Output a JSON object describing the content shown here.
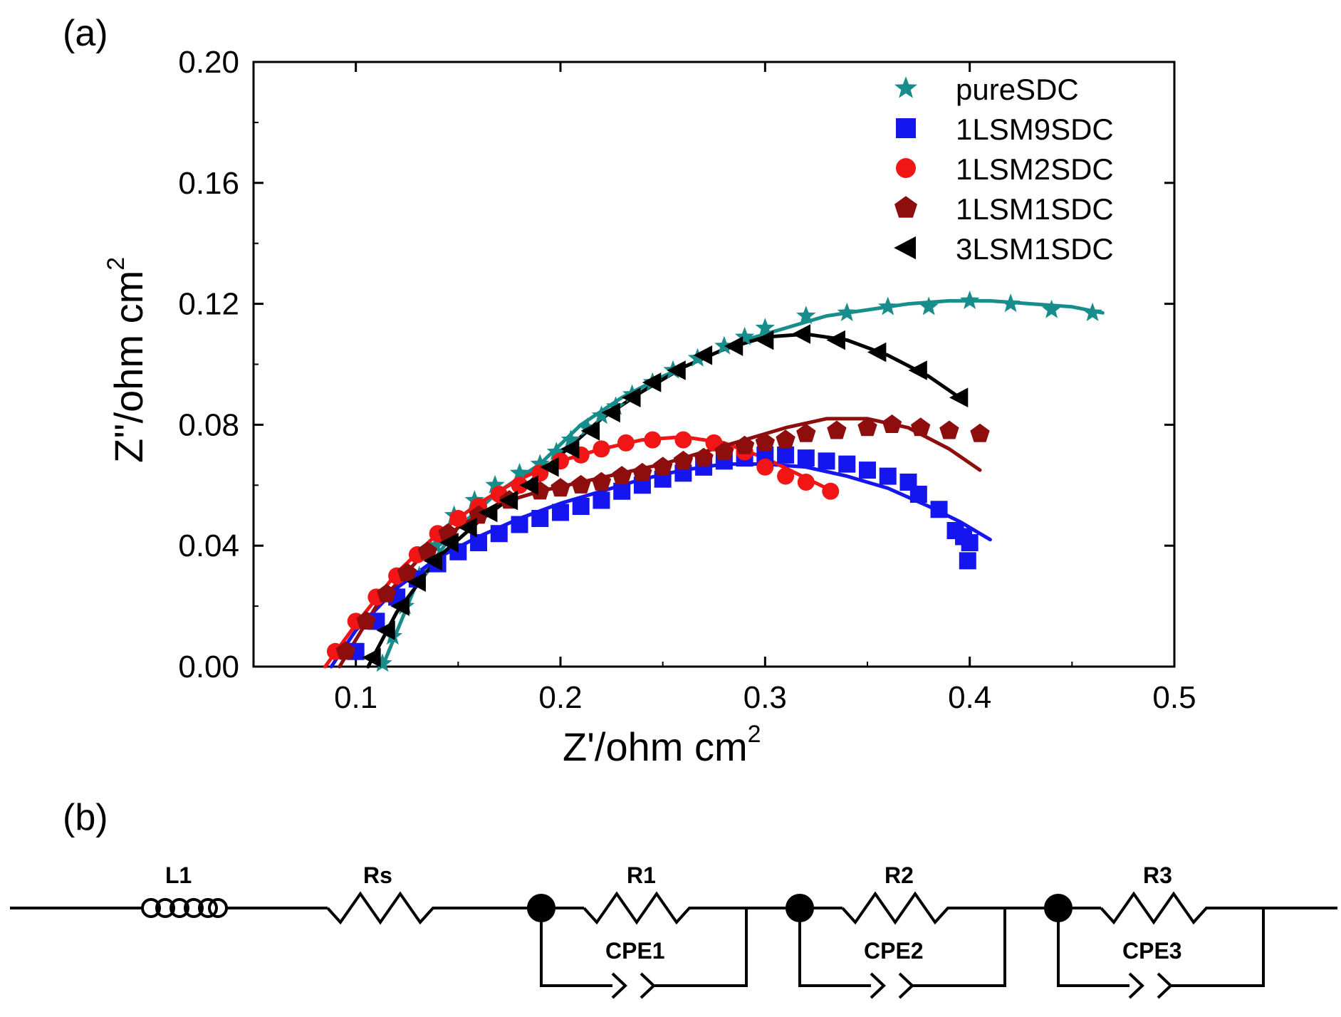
{
  "panels": {
    "a": "(a)",
    "b": "(b)"
  },
  "chart_data": {
    "type": "scatter",
    "title": "",
    "xlabel": "Z'/ohm cm",
    "xlabel_sup": "2",
    "ylabel": "Z''/ohm cm",
    "ylabel_sup": "2",
    "xlim": [
      0.05,
      0.5
    ],
    "ylim": [
      0.0,
      0.2
    ],
    "xticks": [
      0.1,
      0.2,
      0.3,
      0.4,
      0.5
    ],
    "xtick_labels": [
      "0.1",
      "0.2",
      "0.3",
      "0.4",
      "0.5"
    ],
    "yticks": [
      0.0,
      0.04,
      0.08,
      0.12,
      0.16,
      0.2
    ],
    "ytick_labels": [
      "0.00",
      "0.04",
      "0.08",
      "0.12",
      "0.16",
      "0.20"
    ],
    "legend_position": "top-right",
    "grid": false,
    "series": [
      {
        "name": "pureSDC",
        "marker": "star",
        "color": "#188E8C",
        "points": [
          [
            0.113,
            0.001
          ],
          [
            0.118,
            0.01
          ],
          [
            0.124,
            0.02
          ],
          [
            0.131,
            0.03
          ],
          [
            0.139,
            0.04
          ],
          [
            0.148,
            0.05
          ],
          [
            0.158,
            0.055
          ],
          [
            0.168,
            0.06
          ],
          [
            0.18,
            0.064
          ],
          [
            0.19,
            0.067
          ],
          [
            0.198,
            0.071
          ],
          [
            0.205,
            0.075
          ],
          [
            0.213,
            0.079
          ],
          [
            0.22,
            0.083
          ],
          [
            0.227,
            0.086
          ],
          [
            0.235,
            0.09
          ],
          [
            0.245,
            0.094
          ],
          [
            0.255,
            0.098
          ],
          [
            0.267,
            0.102
          ],
          [
            0.28,
            0.106
          ],
          [
            0.29,
            0.109
          ],
          [
            0.3,
            0.112
          ],
          [
            0.32,
            0.116
          ],
          [
            0.34,
            0.117
          ],
          [
            0.36,
            0.119
          ],
          [
            0.38,
            0.119
          ],
          [
            0.4,
            0.121
          ],
          [
            0.42,
            0.12
          ],
          [
            0.44,
            0.118
          ],
          [
            0.46,
            0.117
          ]
        ],
        "fit": [
          [
            0.113,
            0.0
          ],
          [
            0.13,
            0.028
          ],
          [
            0.15,
            0.046
          ],
          [
            0.17,
            0.058
          ],
          [
            0.19,
            0.067
          ],
          [
            0.21,
            0.08
          ],
          [
            0.23,
            0.089
          ],
          [
            0.25,
            0.096
          ],
          [
            0.27,
            0.102
          ],
          [
            0.29,
            0.108
          ],
          [
            0.31,
            0.112
          ],
          [
            0.33,
            0.116
          ],
          [
            0.35,
            0.118
          ],
          [
            0.37,
            0.12
          ],
          [
            0.39,
            0.121
          ],
          [
            0.41,
            0.121
          ],
          [
            0.43,
            0.12
          ],
          [
            0.45,
            0.119
          ],
          [
            0.465,
            0.117
          ]
        ]
      },
      {
        "name": "1LSM9SDC",
        "marker": "square",
        "color": "#1515F0",
        "points": [
          [
            0.1,
            0.005
          ],
          [
            0.11,
            0.015
          ],
          [
            0.12,
            0.023
          ],
          [
            0.13,
            0.029
          ],
          [
            0.14,
            0.034
          ],
          [
            0.15,
            0.038
          ],
          [
            0.16,
            0.041
          ],
          [
            0.17,
            0.044
          ],
          [
            0.18,
            0.047
          ],
          [
            0.19,
            0.049
          ],
          [
            0.2,
            0.051
          ],
          [
            0.21,
            0.053
          ],
          [
            0.22,
            0.055
          ],
          [
            0.23,
            0.058
          ],
          [
            0.24,
            0.06
          ],
          [
            0.25,
            0.062
          ],
          [
            0.26,
            0.064
          ],
          [
            0.27,
            0.066
          ],
          [
            0.28,
            0.068
          ],
          [
            0.29,
            0.069
          ],
          [
            0.3,
            0.07
          ],
          [
            0.31,
            0.07
          ],
          [
            0.32,
            0.069
          ],
          [
            0.33,
            0.068
          ],
          [
            0.34,
            0.067
          ],
          [
            0.35,
            0.065
          ],
          [
            0.36,
            0.063
          ],
          [
            0.37,
            0.061
          ],
          [
            0.375,
            0.057
          ],
          [
            0.385,
            0.052
          ],
          [
            0.393,
            0.045
          ],
          [
            0.397,
            0.043
          ],
          [
            0.4,
            0.041
          ],
          [
            0.399,
            0.035
          ]
        ],
        "fit": [
          [
            0.088,
            0.0
          ],
          [
            0.1,
            0.012
          ],
          [
            0.12,
            0.026
          ],
          [
            0.14,
            0.036
          ],
          [
            0.16,
            0.043
          ],
          [
            0.18,
            0.049
          ],
          [
            0.2,
            0.054
          ],
          [
            0.22,
            0.058
          ],
          [
            0.24,
            0.062
          ],
          [
            0.26,
            0.065
          ],
          [
            0.28,
            0.067
          ],
          [
            0.3,
            0.067
          ],
          [
            0.32,
            0.066
          ],
          [
            0.34,
            0.063
          ],
          [
            0.36,
            0.059
          ],
          [
            0.38,
            0.053
          ],
          [
            0.395,
            0.048
          ],
          [
            0.41,
            0.042
          ]
        ]
      },
      {
        "name": "1LSM2SDC",
        "marker": "circle",
        "color": "#F21515",
        "points": [
          [
            0.09,
            0.005
          ],
          [
            0.1,
            0.015
          ],
          [
            0.11,
            0.023
          ],
          [
            0.12,
            0.03
          ],
          [
            0.13,
            0.037
          ],
          [
            0.14,
            0.044
          ],
          [
            0.15,
            0.049
          ],
          [
            0.16,
            0.053
          ],
          [
            0.17,
            0.057
          ],
          [
            0.18,
            0.06
          ],
          [
            0.19,
            0.064
          ],
          [
            0.2,
            0.068
          ],
          [
            0.21,
            0.07
          ],
          [
            0.22,
            0.072
          ],
          [
            0.232,
            0.074
          ],
          [
            0.245,
            0.075
          ],
          [
            0.26,
            0.075
          ],
          [
            0.275,
            0.074
          ],
          [
            0.29,
            0.071
          ],
          [
            0.3,
            0.066
          ],
          [
            0.31,
            0.063
          ],
          [
            0.32,
            0.061
          ],
          [
            0.332,
            0.058
          ]
        ],
        "fit": [
          [
            0.085,
            0.0
          ],
          [
            0.1,
            0.014
          ],
          [
            0.12,
            0.031
          ],
          [
            0.14,
            0.044
          ],
          [
            0.16,
            0.054
          ],
          [
            0.18,
            0.062
          ],
          [
            0.2,
            0.068
          ],
          [
            0.22,
            0.072
          ],
          [
            0.24,
            0.075
          ],
          [
            0.26,
            0.076
          ],
          [
            0.28,
            0.074
          ],
          [
            0.3,
            0.069
          ],
          [
            0.315,
            0.064
          ],
          [
            0.33,
            0.059
          ]
        ]
      },
      {
        "name": "1LSM1SDC",
        "marker": "pentagon",
        "color": "#8E0E0E",
        "points": [
          [
            0.095,
            0.005
          ],
          [
            0.105,
            0.015
          ],
          [
            0.115,
            0.024
          ],
          [
            0.125,
            0.031
          ],
          [
            0.135,
            0.038
          ],
          [
            0.145,
            0.044
          ],
          [
            0.16,
            0.05
          ],
          [
            0.175,
            0.055
          ],
          [
            0.19,
            0.058
          ],
          [
            0.2,
            0.059
          ],
          [
            0.21,
            0.06
          ],
          [
            0.22,
            0.061
          ],
          [
            0.23,
            0.063
          ],
          [
            0.24,
            0.064
          ],
          [
            0.25,
            0.066
          ],
          [
            0.26,
            0.068
          ],
          [
            0.27,
            0.069
          ],
          [
            0.28,
            0.071
          ],
          [
            0.29,
            0.073
          ],
          [
            0.3,
            0.074
          ],
          [
            0.31,
            0.075
          ],
          [
            0.32,
            0.077
          ],
          [
            0.335,
            0.078
          ],
          [
            0.35,
            0.079
          ],
          [
            0.362,
            0.08
          ],
          [
            0.376,
            0.079
          ],
          [
            0.39,
            0.078
          ],
          [
            0.405,
            0.077
          ]
        ],
        "fit": [
          [
            0.092,
            0.0
          ],
          [
            0.11,
            0.02
          ],
          [
            0.13,
            0.035
          ],
          [
            0.15,
            0.046
          ],
          [
            0.17,
            0.054
          ],
          [
            0.19,
            0.058
          ],
          [
            0.21,
            0.061
          ],
          [
            0.23,
            0.064
          ],
          [
            0.25,
            0.067
          ],
          [
            0.27,
            0.071
          ],
          [
            0.29,
            0.075
          ],
          [
            0.31,
            0.079
          ],
          [
            0.33,
            0.082
          ],
          [
            0.35,
            0.082
          ],
          [
            0.37,
            0.079
          ],
          [
            0.39,
            0.072
          ],
          [
            0.405,
            0.065
          ]
        ]
      },
      {
        "name": "3LSM1SDC",
        "marker": "triangle-left",
        "color": "#000000",
        "points": [
          [
            0.108,
            0.003
          ],
          [
            0.115,
            0.012
          ],
          [
            0.122,
            0.02
          ],
          [
            0.13,
            0.028
          ],
          [
            0.138,
            0.035
          ],
          [
            0.146,
            0.041
          ],
          [
            0.155,
            0.046
          ],
          [
            0.165,
            0.051
          ],
          [
            0.175,
            0.055
          ],
          [
            0.185,
            0.06
          ],
          [
            0.195,
            0.066
          ],
          [
            0.205,
            0.072
          ],
          [
            0.215,
            0.078
          ],
          [
            0.225,
            0.084
          ],
          [
            0.235,
            0.089
          ],
          [
            0.245,
            0.094
          ],
          [
            0.257,
            0.098
          ],
          [
            0.27,
            0.103
          ],
          [
            0.285,
            0.106
          ],
          [
            0.3,
            0.108
          ],
          [
            0.318,
            0.11
          ],
          [
            0.335,
            0.108
          ],
          [
            0.355,
            0.104
          ],
          [
            0.375,
            0.098
          ],
          [
            0.395,
            0.089
          ]
        ],
        "fit": [
          [
            0.106,
            0.0
          ],
          [
            0.12,
            0.018
          ],
          [
            0.14,
            0.036
          ],
          [
            0.16,
            0.048
          ],
          [
            0.18,
            0.058
          ],
          [
            0.2,
            0.07
          ],
          [
            0.22,
            0.082
          ],
          [
            0.24,
            0.091
          ],
          [
            0.26,
            0.099
          ],
          [
            0.28,
            0.105
          ],
          [
            0.3,
            0.109
          ],
          [
            0.32,
            0.11
          ],
          [
            0.34,
            0.108
          ],
          [
            0.36,
            0.103
          ],
          [
            0.38,
            0.096
          ],
          [
            0.395,
            0.089
          ]
        ]
      }
    ]
  },
  "circuit": {
    "elements": [
      {
        "type": "inductor",
        "label": "L1"
      },
      {
        "type": "resistor",
        "label": "Rs"
      },
      {
        "type": "rcpe",
        "resistor": "R1",
        "cpe": "CPE1"
      },
      {
        "type": "rcpe",
        "resistor": "R2",
        "cpe": "CPE2"
      },
      {
        "type": "rcpe",
        "resistor": "R3",
        "cpe": "CPE3"
      }
    ]
  }
}
